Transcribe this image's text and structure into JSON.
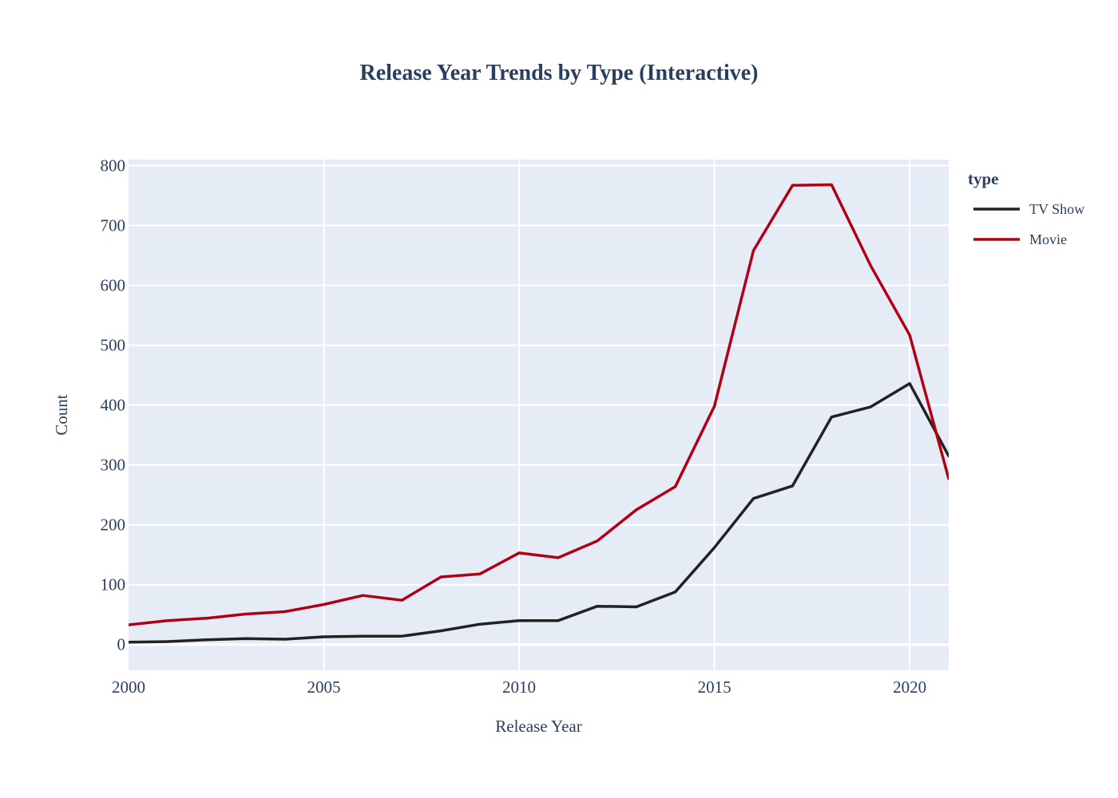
{
  "chart_data": {
    "type": "line",
    "title": "Release Year Trends by Type (Interactive)",
    "xlabel": "Release Year",
    "ylabel": "Count",
    "xlim": [
      2000,
      2021
    ],
    "ylim": [
      -43,
      810
    ],
    "x_ticks": [
      2000,
      2005,
      2010,
      2015,
      2020
    ],
    "y_ticks": [
      0,
      100,
      200,
      300,
      400,
      500,
      600,
      700,
      800
    ],
    "grid": true,
    "legend_title": "type",
    "legend_position": "top-right",
    "series": [
      {
        "name": "TV Show",
        "color": "#222222",
        "x": [
          2000,
          2001,
          2002,
          2003,
          2004,
          2005,
          2006,
          2007,
          2008,
          2009,
          2010,
          2011,
          2012,
          2013,
          2014,
          2015,
          2016,
          2017,
          2018,
          2019,
          2020,
          2021
        ],
        "values": [
          4,
          5,
          8,
          10,
          9,
          13,
          14,
          14,
          23,
          34,
          40,
          40,
          64,
          63,
          88,
          162,
          244,
          265,
          380,
          397,
          436,
          315
        ]
      },
      {
        "name": "Movie",
        "color": "#b00016",
        "x": [
          2000,
          2001,
          2002,
          2003,
          2004,
          2005,
          2006,
          2007,
          2008,
          2009,
          2010,
          2011,
          2012,
          2013,
          2014,
          2015,
          2016,
          2017,
          2018,
          2019,
          2020,
          2021
        ],
        "values": [
          33,
          40,
          44,
          51,
          55,
          67,
          82,
          74,
          113,
          118,
          153,
          145,
          173,
          225,
          264,
          398,
          658,
          767,
          768,
          633,
          517,
          277
        ]
      }
    ]
  }
}
